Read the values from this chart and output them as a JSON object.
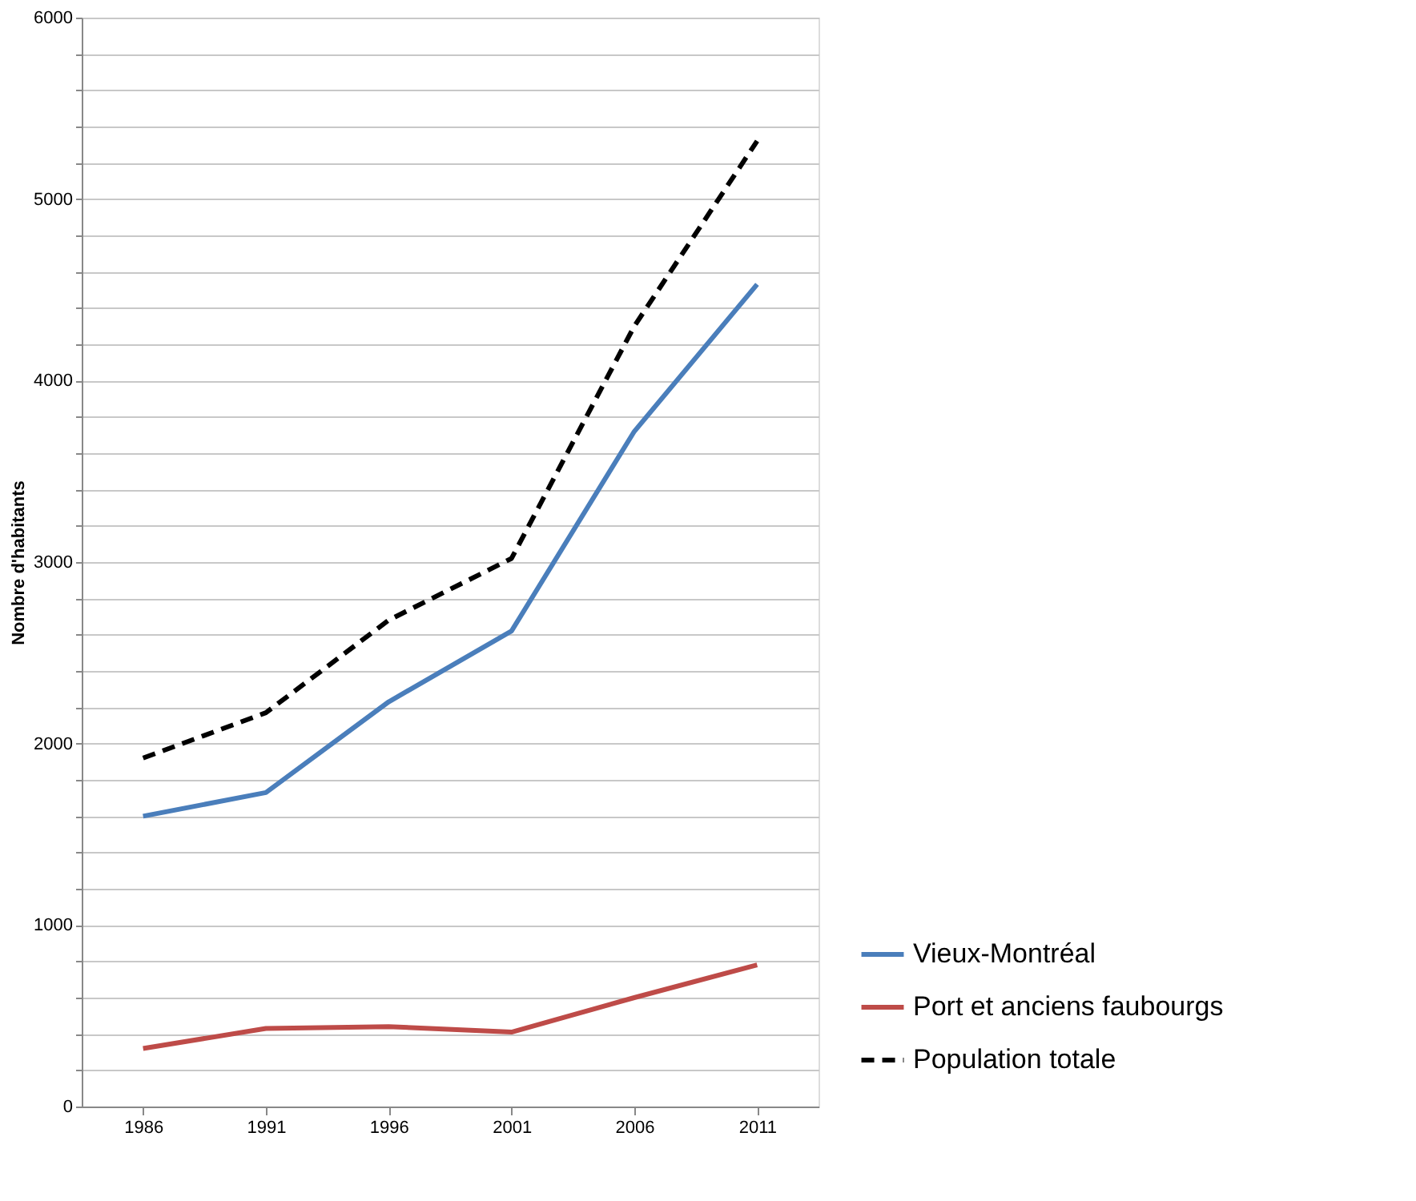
{
  "chart_data": {
    "type": "line",
    "ylabel": "Nombre d'habitants",
    "categories": [
      "1986",
      "1991",
      "1996",
      "2001",
      "2006",
      "2011"
    ],
    "series": [
      {
        "name": "Vieux-Montréal",
        "color": "#4a7ebb",
        "line_style": "solid",
        "values": [
          1600,
          1730,
          2230,
          2620,
          3720,
          4530
        ]
      },
      {
        "name": "Port et anciens faubourgs",
        "color": "#be4b48",
        "line_style": "solid",
        "values": [
          320,
          430,
          440,
          410,
          600,
          780
        ]
      },
      {
        "name": "Population totale",
        "color": "#000000",
        "line_style": "dashed",
        "values": [
          1920,
          2170,
          2680,
          3020,
          4300,
          5320
        ]
      }
    ],
    "ylim": [
      0,
      6000
    ],
    "yticks": [
      0,
      {
        "value": 200,
        "label": null
      },
      {
        "value": 400,
        "label": null
      },
      {
        "value": 600,
        "label": null
      },
      {
        "value": 800,
        "label": null
      },
      1000,
      {
        "value": 1200,
        "label": null
      },
      {
        "value": 1400,
        "label": null
      },
      {
        "value": 1600,
        "label": null
      },
      {
        "value": 1800,
        "label": null
      },
      2000,
      {
        "value": 2200,
        "label": null
      },
      {
        "value": 2400,
        "label": null
      },
      {
        "value": 2600,
        "label": null
      },
      {
        "value": 2800,
        "label": null
      },
      3000,
      {
        "value": 3200,
        "label": null
      },
      {
        "value": 3400,
        "label": null
      },
      {
        "value": 3600,
        "label": null
      },
      {
        "value": 3800,
        "label": null
      },
      4000,
      {
        "value": 4200,
        "label": null
      },
      {
        "value": 4400,
        "label": null
      },
      {
        "value": 4600,
        "label": null
      },
      {
        "value": 4800,
        "label": null
      },
      5000,
      {
        "value": 5200,
        "label": null
      },
      {
        "value": 5400,
        "label": null
      },
      {
        "value": 5600,
        "label": null
      },
      {
        "value": 5800,
        "label": null
      },
      6000
    ],
    "grid": "y",
    "legend": "bottom right",
    "marker": "none"
  }
}
